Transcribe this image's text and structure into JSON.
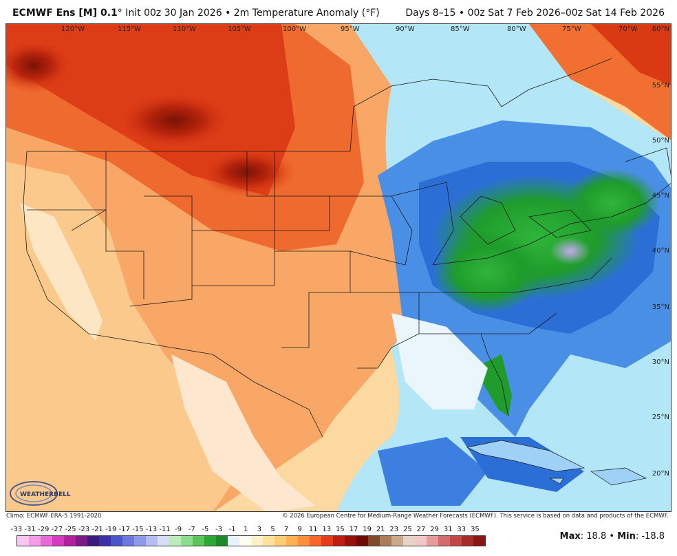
{
  "header": {
    "model": "ECMWF Ens [M] 0.1",
    "deg": "°",
    "init": "Init 00z 30 Jan 2026 • 2m Temperature Anomaly (°F)",
    "valid": "Days 8–15 • 00z Sat 7 Feb 2026–00z Sat 14 Feb 2026"
  },
  "map": {
    "lon_labels": [
      "120°W",
      "115°W",
      "110°W",
      "105°W",
      "100°W",
      "95°W",
      "90°W",
      "85°W",
      "80°W",
      "75°W",
      "70°W"
    ],
    "lat_labels": [
      "60°N",
      "55°N",
      "50°N",
      "45°N",
      "40°N",
      "35°N",
      "30°N",
      "25°N",
      "20°N"
    ],
    "logo_text": "WEATHERBELL",
    "colors": {
      "deep_warm": "#8b1a0a",
      "warm": "#e8431a",
      "mild_warm": "#f79a5a",
      "slight_warm": "#fcd79a",
      "neutral": "#f7f7f7",
      "slight_cold": "#a8e3f5",
      "cold": "#3d7fe0",
      "very_cold": "#1f9c2c",
      "extreme_cold": "#b9a0e8"
    }
  },
  "footer": {
    "climo": "Climo: ECMWF ERA-5 1991-2020",
    "copyright": "© 2026 European Centre for Medium-Range Weather Forecasts (ECMWF). This service is based on data and products of the ECMWF."
  },
  "colorbar": {
    "labels": [
      "-33",
      "-31",
      "-29",
      "-27",
      "-25",
      "-23",
      "-21",
      "-19",
      "-17",
      "-15",
      "-13",
      "-11",
      "-9",
      "-7",
      "-5",
      "-3",
      "-1",
      "1",
      "3",
      "5",
      "7",
      "9",
      "11",
      "13",
      "15",
      "17",
      "19",
      "21",
      "23",
      "25",
      "27",
      "29",
      "31",
      "33",
      "35"
    ],
    "colors": [
      "#f9c6f2",
      "#f29be6",
      "#e86ad6",
      "#d43cc0",
      "#b0219e",
      "#7c1a86",
      "#3c1d7e",
      "#3a33a8",
      "#4a55c9",
      "#6a78de",
      "#8d9ae8",
      "#b4bdf0",
      "#d8dcf6",
      "#b9ecb9",
      "#8fdc8f",
      "#58c65a",
      "#2ea834",
      "#1d8a2a",
      "#e9f3ff",
      "#fffdf0",
      "#fff1c7",
      "#ffe29c",
      "#ffcc73",
      "#ffb052",
      "#ff8f3a",
      "#f7652a",
      "#e23c1d",
      "#c01d12",
      "#951009",
      "#6e0b06",
      "#7e4a2c",
      "#a97c5b",
      "#c9a98a",
      "#e7d3c3",
      "#f2c7c7",
      "#e79a9a",
      "#d56c6c",
      "#c24747",
      "#a62a2a",
      "#8a1515"
    ]
  },
  "stats": {
    "max_label": "Max",
    "max_value": "18.8",
    "sep": "•",
    "min_label": "Min",
    "min_value": "-18.8"
  }
}
